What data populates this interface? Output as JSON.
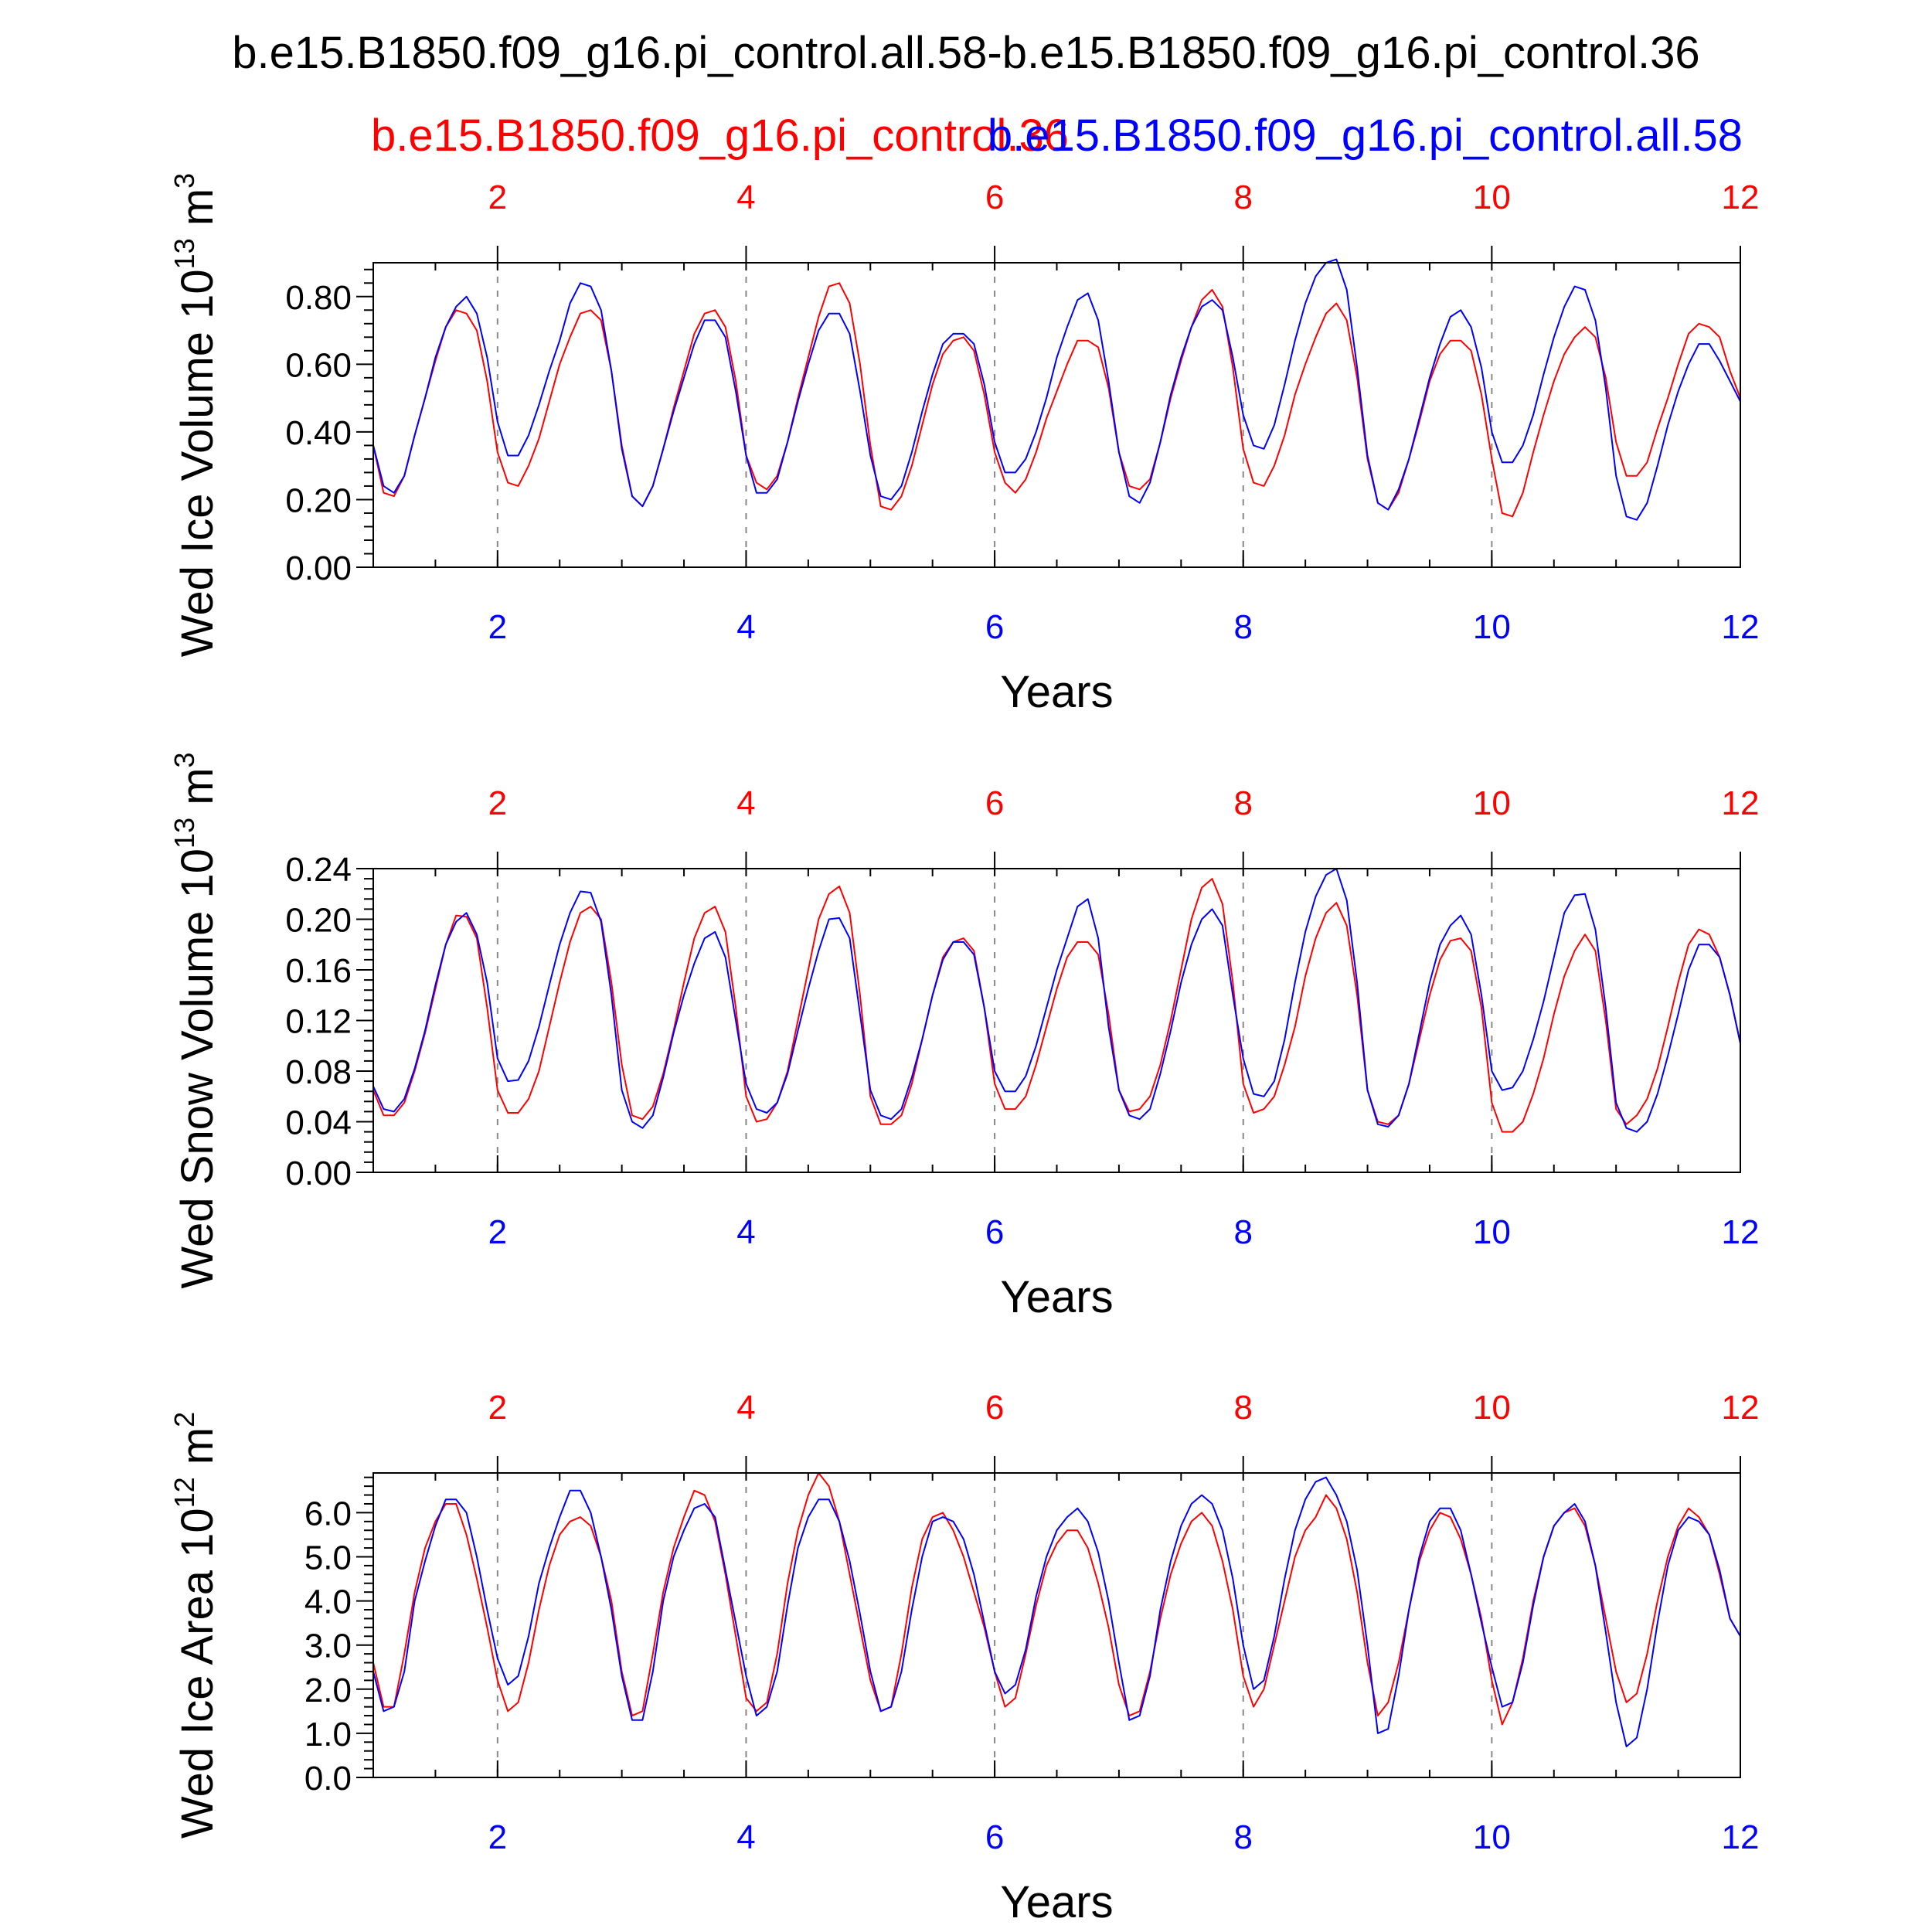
{
  "figure": {
    "title": "b.e15.B1850.f09_g16.pi_control.all.58-b.e15.B1850.f09_g16.pi_control.36",
    "legend_red": "b.e15.B1850.f09_g16.pi_control.36",
    "legend_blue": "b.e15.B1850.f09_g16.pi_control.all.58"
  },
  "colors": {
    "red": "#ff0000",
    "blue": "#0000ff",
    "axis": "#000000",
    "grid": "#888888"
  },
  "chart_data": [
    {
      "type": "line",
      "title": "",
      "xlabel": "Years",
      "ylabel": "Wed Ice Volume 10",
      "ylabel_exp": "13",
      "ylabel_unit": " m",
      "ylabel_unit_exp": "3",
      "xlim": [
        1,
        12
      ],
      "ylim": [
        0,
        0.9
      ],
      "yticks": [
        {
          "v": 0.0,
          "label": "0.00"
        },
        {
          "v": 0.2,
          "label": "0.20"
        },
        {
          "v": 0.4,
          "label": "0.40"
        },
        {
          "v": 0.6,
          "label": "0.60"
        },
        {
          "v": 0.8,
          "label": "0.80"
        }
      ],
      "xticks": [
        {
          "v": 2,
          "label": "2"
        },
        {
          "v": 4,
          "label": "4"
        },
        {
          "v": 6,
          "label": "6"
        },
        {
          "v": 8,
          "label": "8"
        },
        {
          "v": 10,
          "label": "10"
        },
        {
          "v": 12,
          "label": "12"
        }
      ],
      "series": [
        {
          "name": "b.e15.B1850.f09_g16.pi_control.36",
          "color": "#ff0000",
          "values": [
            0.36,
            0.22,
            0.21,
            0.27,
            0.39,
            0.5,
            0.61,
            0.71,
            0.76,
            0.75,
            0.7,
            0.55,
            0.34,
            0.25,
            0.24,
            0.3,
            0.38,
            0.49,
            0.6,
            0.68,
            0.75,
            0.76,
            0.73,
            0.58,
            0.36,
            0.21,
            0.18,
            0.24,
            0.35,
            0.47,
            0.58,
            0.69,
            0.75,
            0.76,
            0.71,
            0.55,
            0.33,
            0.25,
            0.23,
            0.27,
            0.37,
            0.5,
            0.62,
            0.74,
            0.83,
            0.84,
            0.78,
            0.6,
            0.36,
            0.18,
            0.17,
            0.21,
            0.3,
            0.42,
            0.54,
            0.63,
            0.67,
            0.68,
            0.64,
            0.51,
            0.34,
            0.25,
            0.22,
            0.26,
            0.34,
            0.44,
            0.52,
            0.6,
            0.67,
            0.67,
            0.65,
            0.53,
            0.34,
            0.24,
            0.23,
            0.26,
            0.37,
            0.5,
            0.61,
            0.71,
            0.79,
            0.82,
            0.77,
            0.59,
            0.35,
            0.25,
            0.24,
            0.3,
            0.39,
            0.51,
            0.6,
            0.68,
            0.75,
            0.78,
            0.73,
            0.56,
            0.32,
            0.19,
            0.17,
            0.22,
            0.32,
            0.43,
            0.55,
            0.63,
            0.67,
            0.67,
            0.64,
            0.51,
            0.32,
            0.16,
            0.15,
            0.22,
            0.34,
            0.45,
            0.55,
            0.63,
            0.68,
            0.71,
            0.68,
            0.56,
            0.37,
            0.27,
            0.27,
            0.31,
            0.41,
            0.5,
            0.6,
            0.69,
            0.72,
            0.71,
            0.68,
            0.58,
            0.5
          ]
        },
        {
          "name": "b.e15.B1850.f09_g16.pi_control.all.58",
          "color": "#0000ff",
          "values": [
            0.36,
            0.24,
            0.22,
            0.27,
            0.39,
            0.5,
            0.62,
            0.71,
            0.77,
            0.8,
            0.75,
            0.62,
            0.43,
            0.33,
            0.33,
            0.39,
            0.48,
            0.58,
            0.67,
            0.78,
            0.84,
            0.83,
            0.76,
            0.58,
            0.35,
            0.21,
            0.18,
            0.24,
            0.35,
            0.46,
            0.56,
            0.66,
            0.73,
            0.73,
            0.68,
            0.52,
            0.33,
            0.22,
            0.22,
            0.26,
            0.37,
            0.49,
            0.6,
            0.7,
            0.75,
            0.75,
            0.69,
            0.52,
            0.33,
            0.21,
            0.2,
            0.24,
            0.34,
            0.46,
            0.57,
            0.66,
            0.69,
            0.69,
            0.66,
            0.54,
            0.37,
            0.28,
            0.28,
            0.32,
            0.4,
            0.5,
            0.62,
            0.71,
            0.79,
            0.81,
            0.73,
            0.55,
            0.34,
            0.21,
            0.19,
            0.25,
            0.37,
            0.51,
            0.62,
            0.71,
            0.77,
            0.79,
            0.76,
            0.62,
            0.45,
            0.36,
            0.35,
            0.42,
            0.54,
            0.67,
            0.78,
            0.86,
            0.9,
            0.91,
            0.82,
            0.59,
            0.33,
            0.19,
            0.17,
            0.23,
            0.32,
            0.44,
            0.56,
            0.66,
            0.74,
            0.76,
            0.71,
            0.59,
            0.4,
            0.31,
            0.31,
            0.36,
            0.45,
            0.57,
            0.68,
            0.77,
            0.83,
            0.82,
            0.73,
            0.53,
            0.27,
            0.15,
            0.14,
            0.19,
            0.3,
            0.42,
            0.52,
            0.6,
            0.66,
            0.66,
            0.61,
            0.55,
            0.49
          ]
        }
      ]
    },
    {
      "type": "line",
      "title": "",
      "xlabel": "Years",
      "ylabel": "Wed Snow Volume 10",
      "ylabel_exp": "13",
      "ylabel_unit": " m",
      "ylabel_unit_exp": "3",
      "xlim": [
        1,
        12
      ],
      "ylim": [
        0,
        0.24
      ],
      "yticks": [
        {
          "v": 0.0,
          "label": "0.00"
        },
        {
          "v": 0.04,
          "label": "0.04"
        },
        {
          "v": 0.08,
          "label": "0.08"
        },
        {
          "v": 0.12,
          "label": "0.12"
        },
        {
          "v": 0.16,
          "label": "0.16"
        },
        {
          "v": 0.2,
          "label": "0.20"
        },
        {
          "v": 0.24,
          "label": "0.24"
        }
      ],
      "xticks": [
        {
          "v": 2,
          "label": "2"
        },
        {
          "v": 4,
          "label": "4"
        },
        {
          "v": 6,
          "label": "6"
        },
        {
          "v": 8,
          "label": "8"
        },
        {
          "v": 10,
          "label": "10"
        },
        {
          "v": 12,
          "label": "12"
        }
      ],
      "series": [
        {
          "name": "b.e15.B1850.f09_g16.pi_control.36",
          "color": "#ff0000",
          "values": [
            0.065,
            0.045,
            0.045,
            0.055,
            0.08,
            0.11,
            0.145,
            0.18,
            0.203,
            0.202,
            0.185,
            0.13,
            0.065,
            0.047,
            0.047,
            0.058,
            0.08,
            0.115,
            0.15,
            0.182,
            0.205,
            0.21,
            0.2,
            0.15,
            0.085,
            0.045,
            0.042,
            0.052,
            0.078,
            0.112,
            0.15,
            0.185,
            0.205,
            0.21,
            0.19,
            0.13,
            0.06,
            0.04,
            0.042,
            0.055,
            0.08,
            0.12,
            0.16,
            0.2,
            0.22,
            0.226,
            0.205,
            0.14,
            0.06,
            0.038,
            0.038,
            0.045,
            0.07,
            0.105,
            0.14,
            0.17,
            0.182,
            0.185,
            0.175,
            0.13,
            0.07,
            0.05,
            0.05,
            0.06,
            0.085,
            0.115,
            0.145,
            0.17,
            0.182,
            0.182,
            0.172,
            0.125,
            0.065,
            0.048,
            0.05,
            0.06,
            0.085,
            0.12,
            0.16,
            0.2,
            0.225,
            0.232,
            0.212,
            0.15,
            0.07,
            0.047,
            0.05,
            0.06,
            0.085,
            0.115,
            0.155,
            0.185,
            0.205,
            0.213,
            0.195,
            0.14,
            0.065,
            0.04,
            0.038,
            0.045,
            0.07,
            0.105,
            0.14,
            0.168,
            0.183,
            0.185,
            0.175,
            0.13,
            0.055,
            0.032,
            0.032,
            0.04,
            0.062,
            0.09,
            0.125,
            0.155,
            0.175,
            0.188,
            0.175,
            0.12,
            0.05,
            0.038,
            0.045,
            0.058,
            0.082,
            0.115,
            0.15,
            0.18,
            0.192,
            0.188,
            0.17,
            0.14,
            0.102
          ]
        },
        {
          "name": "b.e15.B1850.f09_g16.pi_control.all.58",
          "color": "#0000ff",
          "values": [
            0.068,
            0.05,
            0.048,
            0.058,
            0.082,
            0.112,
            0.148,
            0.18,
            0.198,
            0.205,
            0.188,
            0.15,
            0.09,
            0.072,
            0.073,
            0.088,
            0.115,
            0.148,
            0.18,
            0.205,
            0.222,
            0.221,
            0.198,
            0.14,
            0.065,
            0.04,
            0.035,
            0.045,
            0.075,
            0.11,
            0.14,
            0.165,
            0.185,
            0.19,
            0.17,
            0.12,
            0.07,
            0.05,
            0.047,
            0.055,
            0.078,
            0.112,
            0.145,
            0.175,
            0.2,
            0.201,
            0.185,
            0.125,
            0.065,
            0.045,
            0.042,
            0.05,
            0.075,
            0.105,
            0.14,
            0.168,
            0.182,
            0.182,
            0.172,
            0.13,
            0.08,
            0.064,
            0.064,
            0.076,
            0.1,
            0.13,
            0.16,
            0.185,
            0.21,
            0.216,
            0.185,
            0.115,
            0.065,
            0.045,
            0.042,
            0.05,
            0.078,
            0.112,
            0.15,
            0.18,
            0.2,
            0.208,
            0.195,
            0.14,
            0.09,
            0.062,
            0.06,
            0.072,
            0.105,
            0.15,
            0.19,
            0.218,
            0.235,
            0.24,
            0.215,
            0.15,
            0.065,
            0.038,
            0.036,
            0.045,
            0.07,
            0.11,
            0.15,
            0.18,
            0.195,
            0.203,
            0.188,
            0.14,
            0.08,
            0.065,
            0.067,
            0.08,
            0.105,
            0.135,
            0.17,
            0.205,
            0.219,
            0.22,
            0.192,
            0.13,
            0.055,
            0.035,
            0.032,
            0.04,
            0.062,
            0.092,
            0.125,
            0.16,
            0.18,
            0.18,
            0.17,
            0.14,
            0.102
          ]
        }
      ]
    },
    {
      "type": "line",
      "title": "",
      "xlabel": "Years",
      "ylabel": "Wed Ice Area 10",
      "ylabel_exp": "12",
      "ylabel_unit": " m",
      "ylabel_unit_exp": "2",
      "xlim": [
        1,
        12
      ],
      "ylim": [
        0,
        6.9
      ],
      "yticks": [
        {
          "v": 0.0,
          "label": "0.0"
        },
        {
          "v": 1.0,
          "label": "1.0"
        },
        {
          "v": 2.0,
          "label": "2.0"
        },
        {
          "v": 3.0,
          "label": "3.0"
        },
        {
          "v": 4.0,
          "label": "4.0"
        },
        {
          "v": 5.0,
          "label": "5.0"
        },
        {
          "v": 6.0,
          "label": "6.0"
        }
      ],
      "xticks": [
        {
          "v": 2,
          "label": "2"
        },
        {
          "v": 4,
          "label": "4"
        },
        {
          "v": 6,
          "label": "6"
        },
        {
          "v": 8,
          "label": "8"
        },
        {
          "v": 10,
          "label": "10"
        },
        {
          "v": 12,
          "label": "12"
        }
      ],
      "series": [
        {
          "name": "b.e15.B1850.f09_g16.pi_control.36",
          "color": "#ff0000",
          "values": [
            2.6,
            1.6,
            1.6,
            2.8,
            4.2,
            5.2,
            5.8,
            6.2,
            6.2,
            5.5,
            4.5,
            3.4,
            2.2,
            1.5,
            1.7,
            2.6,
            3.8,
            4.8,
            5.5,
            5.8,
            5.9,
            5.7,
            5.0,
            4.0,
            2.4,
            1.4,
            1.5,
            2.8,
            4.2,
            5.2,
            5.9,
            6.5,
            6.4,
            5.8,
            4.6,
            3.2,
            1.8,
            1.5,
            1.7,
            2.8,
            4.4,
            5.6,
            6.4,
            6.9,
            6.6,
            5.8,
            4.6,
            3.4,
            2.2,
            1.5,
            1.6,
            2.8,
            4.3,
            5.4,
            5.9,
            6.0,
            5.6,
            5.0,
            4.2,
            3.4,
            2.4,
            1.6,
            1.8,
            2.8,
            3.9,
            4.8,
            5.3,
            5.6,
            5.6,
            5.2,
            4.4,
            3.4,
            2.1,
            1.4,
            1.5,
            2.4,
            3.6,
            4.6,
            5.3,
            5.8,
            6.0,
            5.7,
            4.9,
            3.8,
            2.3,
            1.6,
            2.0,
            3.0,
            4.0,
            5.0,
            5.6,
            5.9,
            6.4,
            6.1,
            5.4,
            4.2,
            2.6,
            1.4,
            1.7,
            2.6,
            3.8,
            4.9,
            5.6,
            6.0,
            5.9,
            5.4,
            4.6,
            3.6,
            2.2,
            1.2,
            1.7,
            2.7,
            4.0,
            5.0,
            5.7,
            6.0,
            6.1,
            5.7,
            4.8,
            3.6,
            2.4,
            1.7,
            1.9,
            2.8,
            4.0,
            5.0,
            5.7,
            6.1,
            5.9,
            5.5,
            4.6,
            3.6,
            3.2
          ]
        },
        {
          "name": "b.e15.B1850.f09_g16.pi_control.all.58",
          "color": "#0000ff",
          "values": [
            2.4,
            1.5,
            1.6,
            2.4,
            4.0,
            4.9,
            5.7,
            6.3,
            6.3,
            6.0,
            5.0,
            3.8,
            2.7,
            2.1,
            2.3,
            3.2,
            4.4,
            5.2,
            5.9,
            6.5,
            6.5,
            6.0,
            5.0,
            3.8,
            2.3,
            1.3,
            1.3,
            2.4,
            4.0,
            5.0,
            5.6,
            6.1,
            6.2,
            5.9,
            4.7,
            3.5,
            2.3,
            1.4,
            1.6,
            2.4,
            3.9,
            5.2,
            5.9,
            6.3,
            6.3,
            5.8,
            4.9,
            3.7,
            2.4,
            1.5,
            1.6,
            2.4,
            3.8,
            5.0,
            5.8,
            5.9,
            5.8,
            5.4,
            4.6,
            3.5,
            2.4,
            1.9,
            2.1,
            2.9,
            4.1,
            5.0,
            5.6,
            5.9,
            6.1,
            5.8,
            5.1,
            4.0,
            2.6,
            1.3,
            1.4,
            2.3,
            3.8,
            4.9,
            5.7,
            6.2,
            6.4,
            6.2,
            5.6,
            4.5,
            3.0,
            2.0,
            2.2,
            3.2,
            4.5,
            5.6,
            6.3,
            6.7,
            6.8,
            6.4,
            5.8,
            4.7,
            3.0,
            1.0,
            1.1,
            2.3,
            3.8,
            5.0,
            5.8,
            6.1,
            6.1,
            5.6,
            4.6,
            3.5,
            2.5,
            1.6,
            1.7,
            2.6,
            3.9,
            5.0,
            5.7,
            6.0,
            6.2,
            5.8,
            4.8,
            3.3,
            1.7,
            0.7,
            0.9,
            2.0,
            3.5,
            4.8,
            5.6,
            5.9,
            5.8,
            5.5,
            4.7,
            3.6,
            3.2
          ]
        }
      ]
    }
  ]
}
